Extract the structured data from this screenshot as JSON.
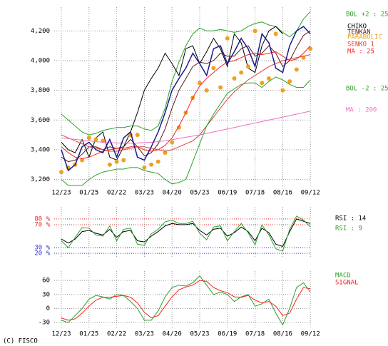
{
  "chart_data": [
    {
      "type": "line",
      "categories": [
        "12/23",
        null,
        null,
        null,
        "01/25",
        null,
        null,
        null,
        "02/22",
        null,
        null,
        null,
        "03/23",
        null,
        null,
        null,
        "04/20",
        null,
        null,
        null,
        "05/23",
        null,
        null,
        null,
        "06/19",
        null,
        null,
        null,
        "07/18",
        null,
        null,
        null,
        "08/16",
        null,
        null,
        null,
        "09/12"
      ],
      "ylim": [
        3150,
        4360
      ],
      "yticks": [
        {
          "value": 3200,
          "label": "3,200"
        },
        {
          "value": 3400,
          "label": "3,400"
        },
        {
          "value": 3600,
          "label": "3,600"
        },
        {
          "value": 3800,
          "label": "3,800"
        },
        {
          "value": 4000,
          "label": "4,000"
        },
        {
          "value": 4200,
          "label": "4,200"
        }
      ],
      "grid": true,
      "series": [
        {
          "name": "BOL +2 : 25",
          "color": "#2ca02c",
          "values": [
            3640,
            3600,
            3560,
            3520,
            3500,
            3510,
            3530,
            3540,
            3550,
            3550,
            3560,
            3560,
            3540,
            3530,
            3560,
            3680,
            3860,
            3990,
            4100,
            4180,
            4220,
            4200,
            4200,
            4210,
            4200,
            4190,
            4200,
            4230,
            4250,
            4260,
            4240,
            4230,
            4190,
            4160,
            4200,
            4280,
            4330
          ]
        },
        {
          "name": "CHIKO",
          "color": "#000000",
          "values": [
            3450,
            3400,
            3380,
            3470,
            3350,
            3480,
            3520,
            3350,
            3330,
            3420,
            3520,
            3650,
            3800,
            3880,
            3950,
            4050,
            3980,
            3900,
            4080,
            4100,
            3980,
            4060,
            4150,
            4080,
            3960,
            4180,
            4120,
            3950,
            3920,
            4100,
            4200,
            4230,
            4180,
            null,
            null,
            null,
            null
          ]
        },
        {
          "name": "TENKAN",
          "color": "#5a1a1a",
          "values": [
            3350,
            3320,
            3330,
            3370,
            3420,
            3420,
            3400,
            3420,
            3410,
            3420,
            3470,
            3420,
            3360,
            3380,
            3440,
            3540,
            3680,
            3800,
            3880,
            3960,
            3990,
            3980,
            4000,
            4050,
            4030,
            4030,
            4080,
            4100,
            4030,
            4050,
            4100,
            4050,
            3960,
            4000,
            4090,
            4170,
            4200
          ]
        },
        {
          "name": "PARABOLIC",
          "color": "#f0a020",
          "marker": "dots",
          "values": [
            3250,
            3280,
            3300,
            3330,
            3480,
            3470,
            3460,
            3300,
            3320,
            3330,
            3500,
            3500,
            3280,
            3300,
            3320,
            3380,
            3450,
            3550,
            3650,
            3750,
            3850,
            3800,
            3950,
            3820,
            4150,
            3880,
            3920,
            3960,
            4200,
            3850,
            3880,
            4180,
            3800,
            3860,
            3940,
            4020,
            4080
          ]
        },
        {
          "name": "SENKO 1",
          "color": "#e04040",
          "values": [
            3500,
            3480,
            3460,
            3440,
            3420,
            3410,
            3400,
            3390,
            3390,
            3400,
            3410,
            3420,
            3420,
            3410,
            3400,
            3390,
            3400,
            3420,
            3440,
            3460,
            3500,
            3560,
            3620,
            3680,
            3740,
            3790,
            3830,
            3870,
            3900,
            3930,
            3960,
            3980,
            4000,
            4010,
            4020,
            4030,
            4040
          ]
        },
        {
          "name": "MA : 25",
          "color": "#ff2020",
          "values": [
            3420,
            3380,
            3350,
            3340,
            3350,
            3370,
            3390,
            3400,
            3410,
            3410,
            3420,
            3420,
            3400,
            3390,
            3400,
            3430,
            3480,
            3560,
            3650,
            3750,
            3830,
            3880,
            3920,
            3960,
            3990,
            4000,
            4020,
            4040,
            4050,
            4040,
            4050,
            4060,
            4030,
            4000,
            4010,
            4050,
            4100
          ]
        },
        {
          "name": "BOL -2 : 25",
          "color": "#2ca02c",
          "values": [
            3200,
            3160,
            3160,
            3160,
            3200,
            3230,
            3250,
            3260,
            3270,
            3270,
            3280,
            3280,
            3260,
            3250,
            3240,
            3200,
            3170,
            3180,
            3200,
            3320,
            3440,
            3560,
            3640,
            3710,
            3780,
            3810,
            3840,
            3850,
            3850,
            3820,
            3860,
            3890,
            3870,
            3840,
            3820,
            3820,
            3870
          ]
        },
        {
          "name": "MA : 200",
          "color": "#f070c0",
          "values": [
            3480,
            3475,
            3470,
            3465,
            3460,
            3455,
            3450,
            3448,
            3446,
            3445,
            3445,
            3446,
            3448,
            3450,
            3455,
            3460,
            3468,
            3476,
            3484,
            3492,
            3500,
            3510,
            3520,
            3530,
            3540,
            3550,
            3560,
            3570,
            3580,
            3590,
            3600,
            3610,
            3620,
            3630,
            3640,
            3650,
            3660
          ]
        },
        {
          "color": "#1a1a8c",
          "values": [
            3400,
            3260,
            3300,
            3420,
            3450,
            3400,
            3380,
            3470,
            3350,
            3480,
            3520,
            3350,
            3330,
            3420,
            3520,
            3650,
            3800,
            3880,
            3950,
            4050,
            3980,
            3900,
            4080,
            4100,
            3980,
            4060,
            4150,
            4080,
            3960,
            4180,
            4120,
            3950,
            3920,
            4100,
            4200,
            4230,
            4180
          ]
        }
      ]
    },
    {
      "type": "line",
      "ylim": [
        14,
        101
      ],
      "yticks": [
        {
          "value": 20,
          "label": "20 %"
        },
        {
          "value": 30,
          "label": "30 %"
        },
        {
          "value": 70,
          "label": "70 %"
        },
        {
          "value": 80,
          "label": "80 %"
        }
      ],
      "ytick_colors": [
        "#3030e0",
        "#3030e0",
        "#e03030",
        "#e03030"
      ],
      "grid": true,
      "series": [
        {
          "name": "RSI : 14",
          "color": "#000000",
          "values": [
            45,
            38,
            45,
            58,
            60,
            55,
            52,
            62,
            48,
            58,
            60,
            42,
            40,
            50,
            58,
            68,
            72,
            70,
            70,
            72,
            60,
            52,
            62,
            64,
            50,
            56,
            66,
            58,
            42,
            64,
            56,
            36,
            32,
            58,
            80,
            76,
            72
          ]
        },
        {
          "name": "RSI : 9",
          "color": "#2ca02c",
          "values": [
            42,
            30,
            48,
            65,
            64,
            52,
            50,
            68,
            42,
            62,
            64,
            36,
            34,
            54,
            62,
            75,
            78,
            72,
            72,
            76,
            55,
            44,
            66,
            68,
            42,
            58,
            72,
            56,
            35,
            70,
            52,
            28,
            24,
            62,
            85,
            78,
            66
          ]
        }
      ]
    },
    {
      "type": "line",
      "categories": [
        "12/23",
        null,
        null,
        null,
        "01/25",
        null,
        null,
        null,
        "02/22",
        null,
        null,
        null,
        "03/23",
        null,
        null,
        null,
        "04/20",
        null,
        null,
        null,
        "05/23",
        null,
        null,
        null,
        "06/19",
        null,
        null,
        null,
        "07/18",
        null,
        null,
        null,
        "08/16",
        null,
        null,
        null,
        "09/12"
      ],
      "ylim": [
        -42,
        80
      ],
      "yticks": [
        -30,
        0,
        30,
        60
      ],
      "grid": true,
      "series": [
        {
          "name": "MACD",
          "color": "#2ca02c",
          "values": [
            -25,
            -30,
            -15,
            0,
            20,
            28,
            25,
            20,
            30,
            28,
            15,
            0,
            -25,
            -25,
            -5,
            25,
            45,
            50,
            48,
            55,
            70,
            50,
            30,
            35,
            30,
            15,
            25,
            30,
            5,
            10,
            20,
            -10,
            -35,
            0,
            45,
            55,
            35
          ]
        },
        {
          "name": "SIGNAL",
          "color": "#ff2020",
          "values": [
            -20,
            -25,
            -22,
            -10,
            5,
            18,
            24,
            24,
            26,
            28,
            24,
            12,
            -8,
            -20,
            -15,
            5,
            25,
            40,
            46,
            50,
            60,
            58,
            45,
            38,
            34,
            25,
            24,
            28,
            18,
            12,
            15,
            5,
            -15,
            -10,
            20,
            45,
            42
          ]
        }
      ]
    }
  ],
  "footer": "(C) FISCO"
}
